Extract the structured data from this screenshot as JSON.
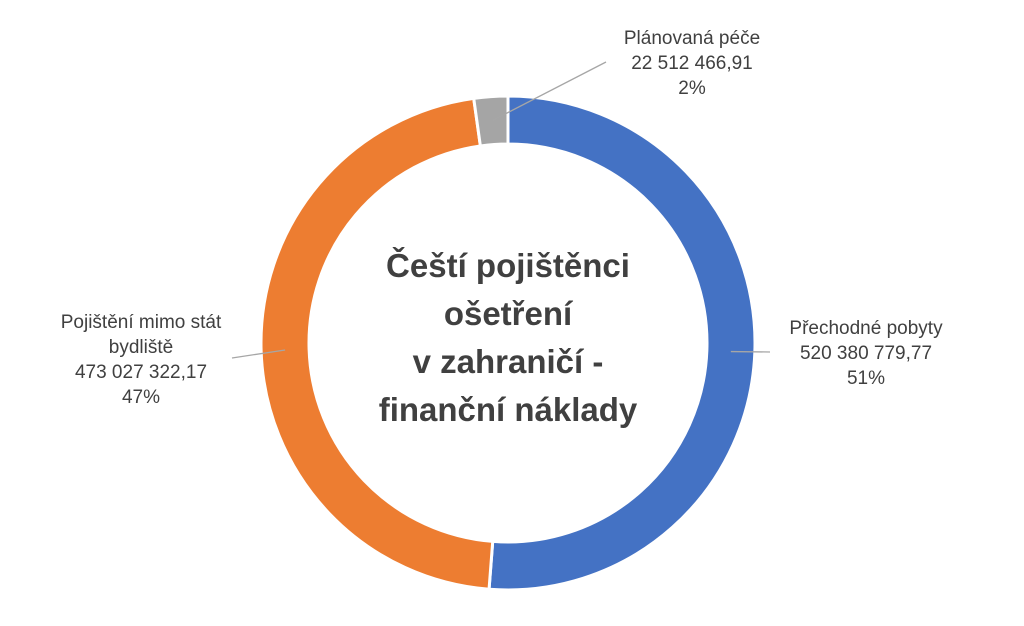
{
  "chart_data": {
    "type": "pie",
    "variant": "doughnut",
    "title": "Čeští pojištěnci ošetření v zahraničí - finanční náklady",
    "title_lines": [
      "Čeští pojištěnci",
      "ošetření",
      "v zahraničí -",
      "finanční náklady"
    ],
    "title_position": "center",
    "legend": "none",
    "slices": [
      {
        "label": "Přechodné pobyty",
        "label_lines": [
          "Přechodné pobyty"
        ],
        "value": 520380779.77,
        "value_text": "520 380 779,77",
        "percent_text": "51%",
        "color": "#4472C4"
      },
      {
        "label": "Pojištění mimo stát bydliště",
        "label_lines": [
          "Pojištění mimo stát",
          "bydliště"
        ],
        "value": 473027322.17,
        "value_text": "473 027 322,17",
        "percent_text": "47%",
        "color": "#ED7D31"
      },
      {
        "label": "Plánovaná péče",
        "label_lines": [
          "Plánovaná péče"
        ],
        "value": 22512466.91,
        "value_text": "22 512 466,91",
        "percent_text": "2%",
        "color": "#A5A5A5"
      }
    ],
    "leader_line_color": "#A6A6A6",
    "text_color": "#404040"
  }
}
